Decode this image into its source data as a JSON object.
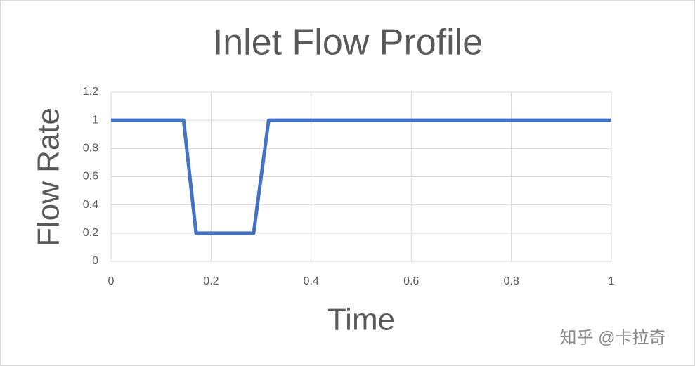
{
  "chart_data": {
    "type": "line",
    "title": "Inlet Flow Profile",
    "x_label": "Time",
    "y_label": "Flow Rate",
    "x": [
      0,
      0.145,
      0.17,
      0.285,
      0.315,
      1
    ],
    "series": [
      {
        "color": "#4472c4",
        "values": [
          1,
          1,
          0.2,
          0.2,
          1,
          1
        ]
      }
    ],
    "xlim": [
      0,
      1
    ],
    "xticks": [
      0,
      0.2,
      0.4,
      0.6,
      0.8,
      1
    ],
    "ylim": [
      0,
      1.2
    ],
    "yticks": [
      0,
      0.2,
      0.4,
      0.6,
      0.8,
      1,
      1.2
    ],
    "grid": true,
    "watermark": "知乎 @卡拉奇"
  }
}
